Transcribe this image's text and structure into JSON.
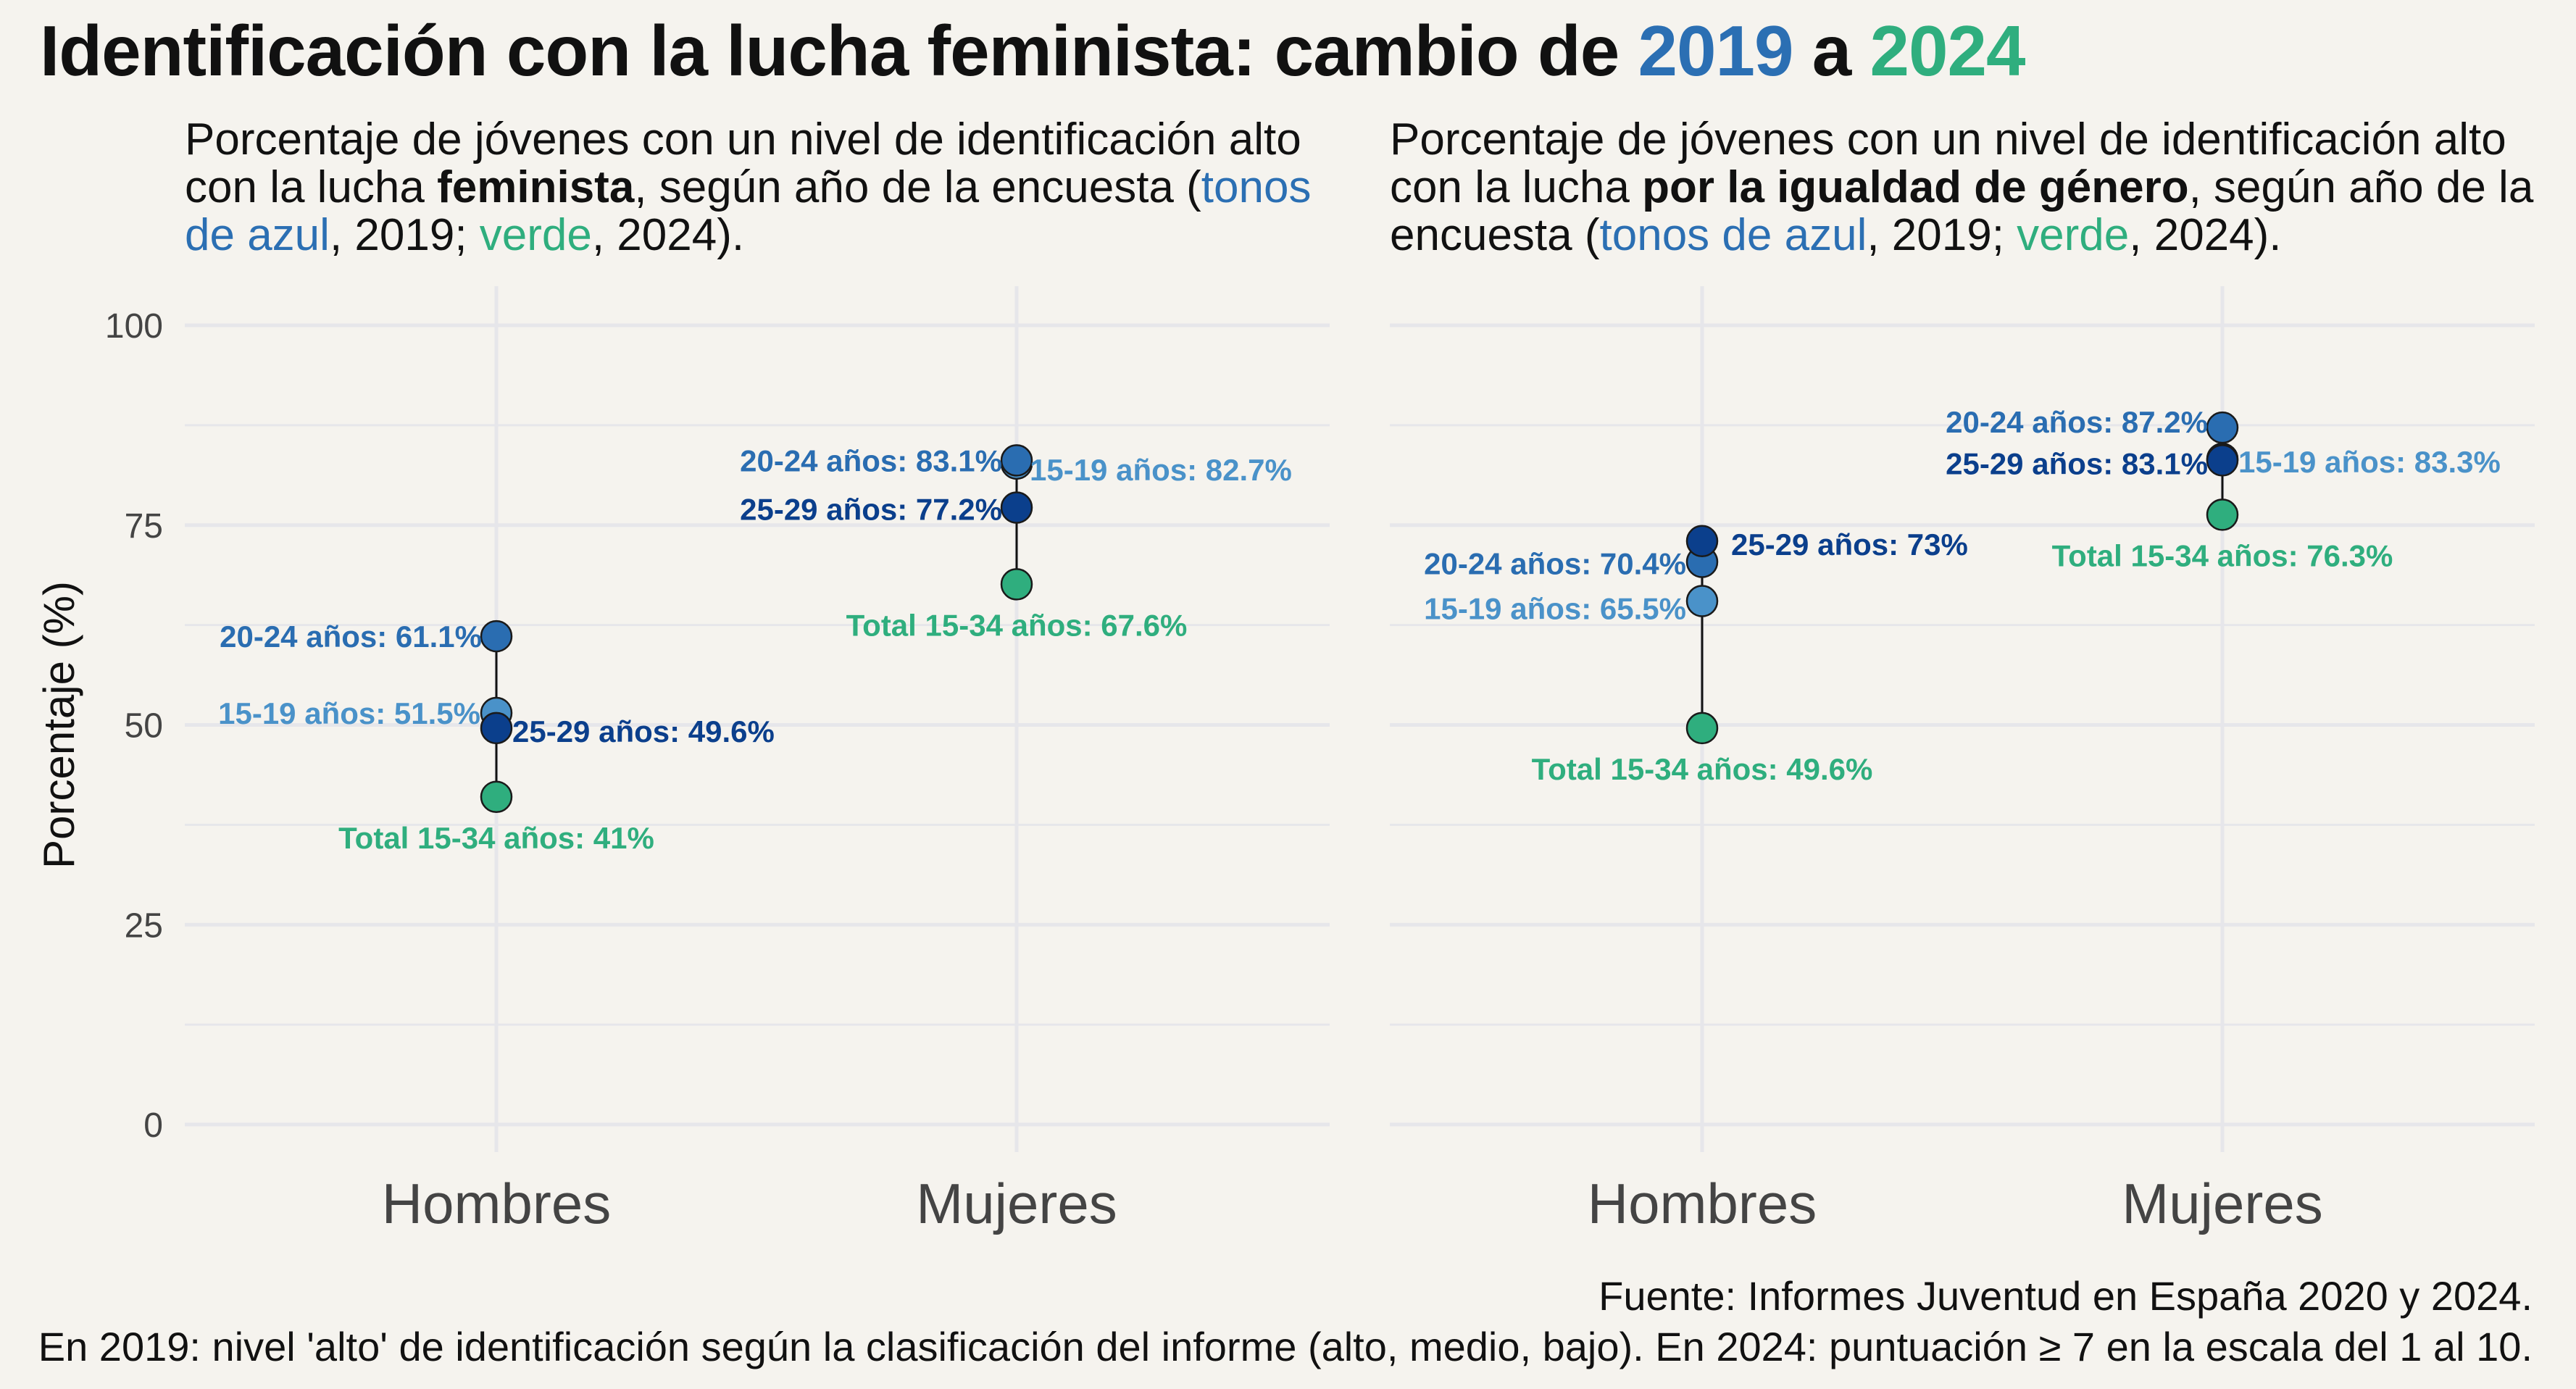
{
  "title": {
    "prefix": "Identificación con la lucha feminista: cambio de ",
    "year1": "2019",
    "connector": " a ",
    "year2": "2024"
  },
  "subtitles": [
    {
      "part1": "Porcentaje de jóvenes con un nivel de identificación alto con la lucha ",
      "bold": "feminista",
      "part2": ", según año de la encuesta (",
      "blue": "tonos de azul",
      "part3": ", 2019; ",
      "green": "verde",
      "part4": ", 2024)."
    },
    {
      "part1": "Porcentaje de jóvenes con un nivel de identificación alto con la lucha ",
      "bold": "por la igualdad de género",
      "part2": ", según año de la encuesta (",
      "blue": "tonos de azul",
      "part3": ", 2019; ",
      "green": "verde",
      "part4": ", 2024)."
    }
  ],
  "caption": [
    "Fuente: Informes Juventud en España 2020 y 2024.",
    "En 2019: nivel 'alto' de identificación según la clasificación del informe (alto, medio, bajo). En 2024: puntuación ≥ 7 en la escala del 1 al 10."
  ],
  "colors": {
    "background": "#f5f3ee",
    "grid": "#e6e6ea",
    "15-19": "#4a92c9",
    "20-24": "#2a6db1",
    "25-29": "#0b3f8c",
    "total": "#2fae7e"
  },
  "chart_data": [
    {
      "type": "scatter",
      "panel": "feminista",
      "ylabel": "Porcentaje (%)",
      "ylim": [
        0,
        100
      ],
      "yticks": [
        0,
        25,
        50,
        75,
        100
      ],
      "categories": [
        "Hombres",
        "Mujeres"
      ],
      "grid": true,
      "points": [
        {
          "category": "Hombres",
          "group": "15-19",
          "label": "15-19 años: 51.5%",
          "value": 51.5
        },
        {
          "category": "Hombres",
          "group": "20-24",
          "label": "20-24 años: 61.1%",
          "value": 61.1
        },
        {
          "category": "Hombres",
          "group": "25-29",
          "label": "25-29 años: 49.6%",
          "value": 49.6
        },
        {
          "category": "Hombres",
          "group": "total",
          "label": "Total 15-34 años: 41%",
          "value": 41.0
        },
        {
          "category": "Mujeres",
          "group": "15-19",
          "label": "15-19 años: 82.7%",
          "value": 82.7
        },
        {
          "category": "Mujeres",
          "group": "20-24",
          "label": "20-24 años: 83.1%",
          "value": 83.1
        },
        {
          "category": "Mujeres",
          "group": "25-29",
          "label": "25-29 años: 77.2%",
          "value": 77.2
        },
        {
          "category": "Mujeres",
          "group": "total",
          "label": "Total 15-34 años: 67.6%",
          "value": 67.6
        }
      ]
    },
    {
      "type": "scatter",
      "panel": "igualdad de género",
      "ylim": [
        0,
        100
      ],
      "categories": [
        "Hombres",
        "Mujeres"
      ],
      "grid": true,
      "points": [
        {
          "category": "Hombres",
          "group": "15-19",
          "label": "15-19 años: 65.5%",
          "value": 65.5
        },
        {
          "category": "Hombres",
          "group": "20-24",
          "label": "20-24 años: 70.4%",
          "value": 70.4
        },
        {
          "category": "Hombres",
          "group": "25-29",
          "label": "25-29 años: 73%",
          "value": 73.0
        },
        {
          "category": "Hombres",
          "group": "total",
          "label": "Total 15-34 años: 49.6%",
          "value": 49.6
        },
        {
          "category": "Mujeres",
          "group": "15-19",
          "label": "15-19 años: 83.3%",
          "value": 83.3
        },
        {
          "category": "Mujeres",
          "group": "20-24",
          "label": "20-24 años: 87.2%",
          "value": 87.2
        },
        {
          "category": "Mujeres",
          "group": "25-29",
          "label": "25-29 años: 83.1%",
          "value": 83.1
        },
        {
          "category": "Mujeres",
          "group": "total",
          "label": "Total 15-34 años: 76.3%",
          "value": 76.3
        }
      ]
    }
  ]
}
